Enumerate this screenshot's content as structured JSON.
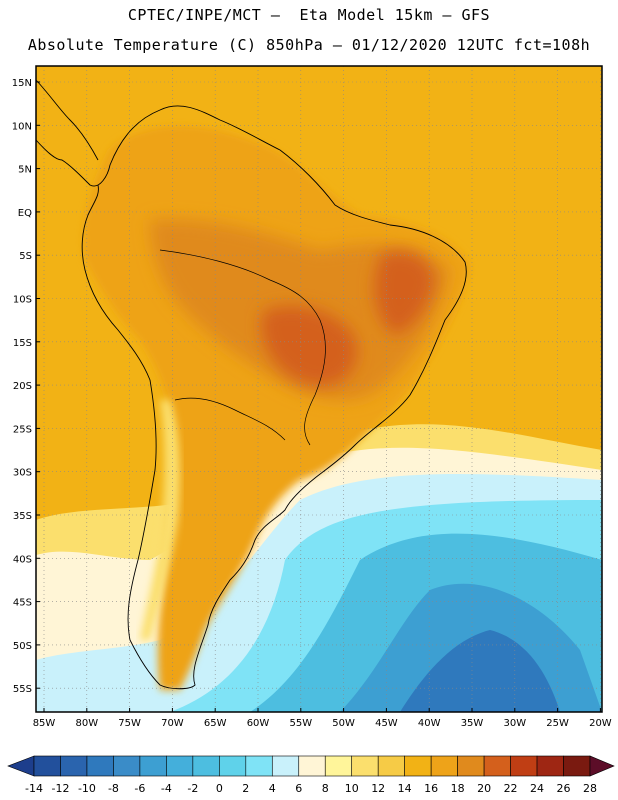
{
  "header": {
    "line1": "CPTEC/INPE/MCT –  Eta Model 15km – GFS",
    "line2": "Absolute Temperature (C) 850hPa – 01/12/2020 12UTC fct=108h"
  },
  "map": {
    "lat_labels": [
      "15N",
      "10N",
      "5N",
      "EQ",
      "5S",
      "10S",
      "15S",
      "20S",
      "25S",
      "30S",
      "35S",
      "40S",
      "45S",
      "50S",
      "55S"
    ],
    "lon_labels": [
      "85W",
      "80W",
      "75W",
      "70W",
      "65W",
      "60W",
      "55W",
      "50W",
      "45W",
      "40W",
      "35W",
      "30W",
      "25W",
      "20W"
    ],
    "colors": {
      "ocean_warm": "#f2b215",
      "land_warm": "#eea319",
      "land_hot": "#e08a1d",
      "hottest": "#d4601c",
      "cool_yellow": "#fbdf6d",
      "pale": "#fff5d6",
      "light_cyan": "#c9f1fb",
      "cyan": "#7fe3f6",
      "sky": "#4dbee0",
      "blue": "#3d9fd2",
      "deep": "#2f79bd"
    }
  },
  "colorbar": {
    "labels": [
      "-14",
      "-12",
      "-10",
      "-8",
      "-6",
      "-4",
      "-2",
      "0",
      "2",
      "4",
      "6",
      "8",
      "10",
      "12",
      "14",
      "16",
      "18",
      "20",
      "22",
      "24",
      "26",
      "28"
    ],
    "colors": [
      "#1d3e8c",
      "#22509c",
      "#2a64ae",
      "#2f79bd",
      "#3a8cc8",
      "#3d9fd2",
      "#44afdb",
      "#4dbee0",
      "#5fd2ea",
      "#7fe3f6",
      "#c9f1fb",
      "#fff5d6",
      "#fff59a",
      "#fbdf6d",
      "#f6cb46",
      "#f2b215",
      "#eea319",
      "#e08a1d",
      "#d4601c",
      "#c03e14",
      "#9e2613",
      "#7a1a10",
      "#5c0d28"
    ]
  }
}
